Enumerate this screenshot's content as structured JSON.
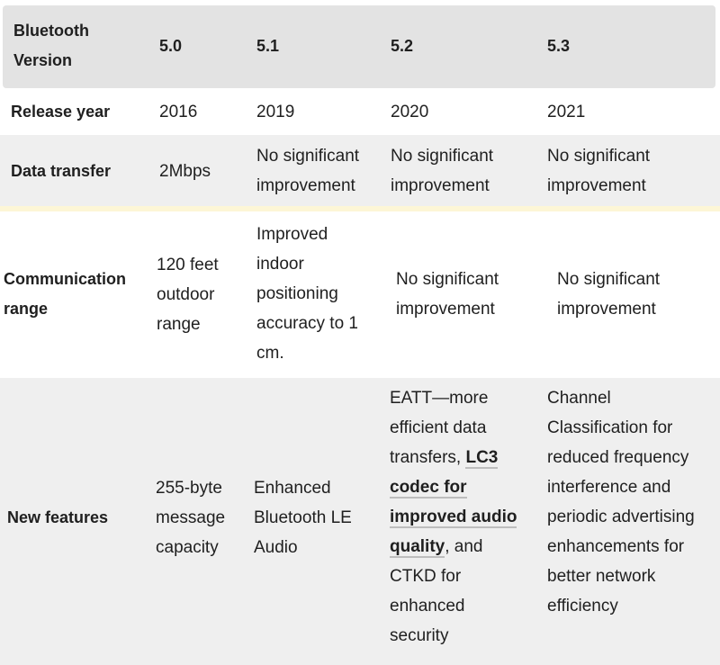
{
  "columns": {
    "label": "Bluetooth Version",
    "v50": "5.0",
    "v51": "5.1",
    "v52": "5.2",
    "v53": "5.3"
  },
  "rows": {
    "release_year": {
      "label": "Release year",
      "v50": "2016",
      "v51": "2019",
      "v52": "2020",
      "v53": "2021"
    },
    "data_transfer": {
      "label": "Data transfer",
      "v50": "2Mbps",
      "v51": "No significant improvement",
      "v52": "No significant improvement",
      "v53": "No significant improvement"
    },
    "communication_range": {
      "label": "Communication range",
      "v50": "120 feet outdoor range",
      "v51": "Improved indoor positioning accuracy to 1 cm.",
      "v52": "No significant improvement",
      "v53": "No significant improvement"
    },
    "new_features": {
      "label": "New features",
      "v50": "255-byte message capacity",
      "v51": "Enhanced Bluetooth LE Audio",
      "v52_before": "EATT—more efficient data transfers, ",
      "v52_link": "LC3 codec for improved audio quality",
      "v52_after": ", and CTKD for enhanced security",
      "v53": "Channel Classification for reduced frequency interference and periodic advertising enhancements for better network efficiency"
    }
  }
}
